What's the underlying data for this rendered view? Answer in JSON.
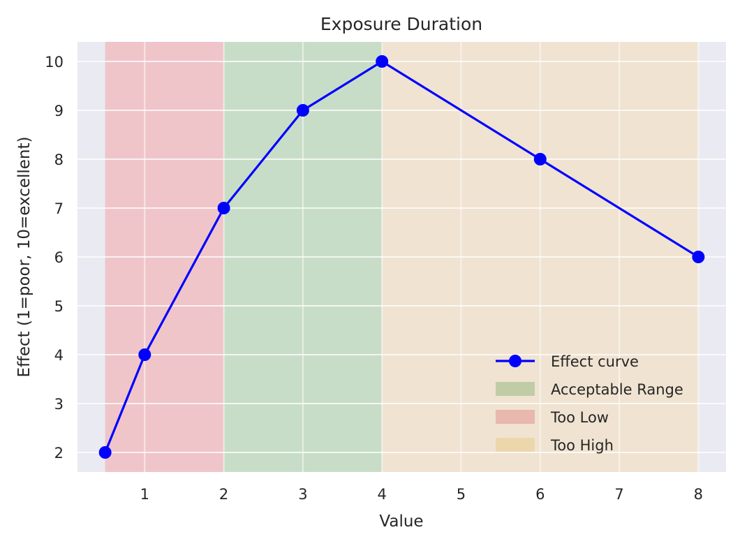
{
  "chart_data": {
    "type": "line",
    "title": "Exposure Duration",
    "xlabel": "Value",
    "ylabel": "Effect (1=poor, 10=excellent)",
    "xlim": [
      0.15,
      8.35
    ],
    "ylim": [
      1.6,
      10.4
    ],
    "xticks": [
      1,
      2,
      3,
      4,
      5,
      6,
      7,
      8
    ],
    "yticks": [
      2,
      3,
      4,
      5,
      6,
      7,
      8,
      9,
      10
    ],
    "grid": true,
    "legend_position": "lower-right",
    "series": [
      {
        "name": "Effect curve",
        "color": "#0000ff",
        "x": [
          0.5,
          1,
          2,
          3,
          4,
          6,
          8
        ],
        "y": [
          2,
          4,
          7,
          9,
          10,
          8,
          6
        ]
      }
    ],
    "regions": [
      {
        "name": "Too Low",
        "x0": 0.5,
        "x1": 2,
        "color": "#f4a0a0",
        "legend_color": "#e9b7ae"
      },
      {
        "name": "Acceptable Range",
        "x0": 2,
        "x1": 4,
        "color": "#a6cf9b",
        "legend_color": "#c0cca6"
      },
      {
        "name": "Too High",
        "x0": 4,
        "x1": 8,
        "color": "#f5dcb0",
        "legend_color": "#ecd6ac"
      }
    ],
    "legend_order": [
      "Effect curve",
      "Acceptable Range",
      "Too Low",
      "Too High"
    ]
  }
}
